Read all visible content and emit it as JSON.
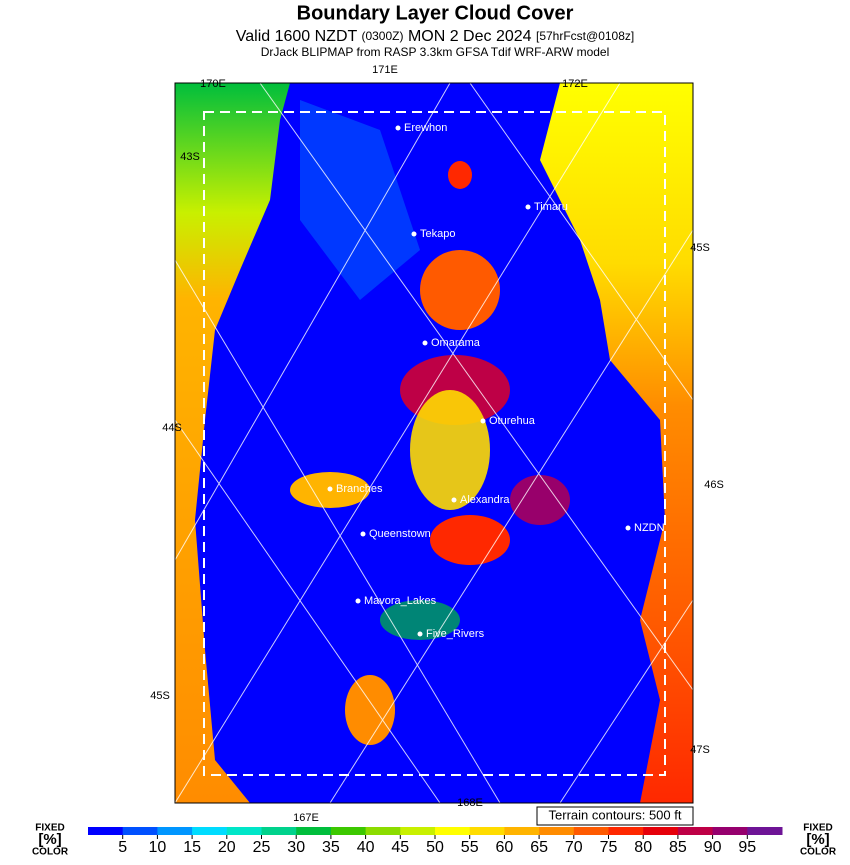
{
  "header": {
    "title": "Boundary Layer Cloud Cover",
    "subtitle": [
      "Valid 1600 NZDT",
      "(0300Z)",
      "MON 2 Dec 2024",
      "[57hrFcst@0108z]"
    ],
    "source": "DrJack BLIPMAP from RASP 3.3km GFSA Tdif WRF-ARW model"
  },
  "grid_labels": [
    "170E",
    "171E",
    "172E",
    "43S",
    "45S",
    "44S",
    "46S",
    "45S",
    "47S",
    "167E",
    "168E"
  ],
  "places": [
    "Erewhon",
    "Timaru",
    "Tekapo",
    "Omarama",
    "Oturehua",
    "Branches",
    "Alexandra",
    "NZDN",
    "Queenstown",
    "Mavora_Lakes",
    "Five_Rivers"
  ],
  "terrain_note": "Terrain contours: 500 ft",
  "legend": {
    "left": [
      "FIXED",
      "[%]",
      "COLOR"
    ],
    "right": [
      "FIXED",
      "[%]",
      "COLOR"
    ],
    "ticks": [
      5,
      10,
      15,
      20,
      25,
      30,
      35,
      40,
      45,
      50,
      55,
      60,
      65,
      70,
      75,
      80,
      85,
      90,
      95
    ],
    "colors": [
      "#0000ff",
      "#0050ff",
      "#0096ff",
      "#00dcff",
      "#00e6c8",
      "#00d28c",
      "#00be3c",
      "#3cc800",
      "#8cdc00",
      "#c8f000",
      "#ffff00",
      "#ffdc00",
      "#ffb400",
      "#ff8c00",
      "#ff5a00",
      "#ff2800",
      "#e6000a",
      "#be0046",
      "#96006e",
      "#6e1496"
    ]
  }
}
